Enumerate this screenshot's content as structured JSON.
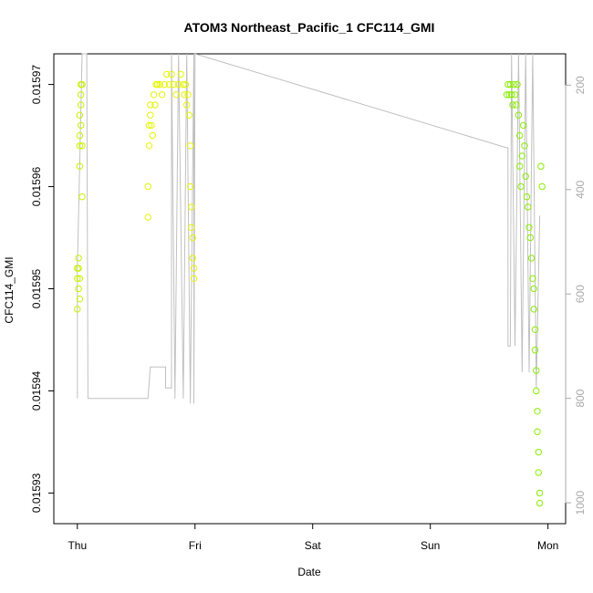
{
  "chart_data": {
    "type": "scatter",
    "title": "ATOM3 Northeast_Pacific_1 CFC114_GMI",
    "xlabel": "Date",
    "ylabel": "CFC114_GMI",
    "x_tick_labels": [
      "Thu",
      "Fri",
      "Sat",
      "Sun",
      "Mon"
    ],
    "x_ticks": [
      0,
      1,
      2,
      3,
      4
    ],
    "xlim": [
      -0.2,
      4.15
    ],
    "ylim": [
      0.015927,
      0.015973
    ],
    "y_tick_labels": [
      "0.01593",
      "0.01594",
      "0.01595",
      "0.01596",
      "0.01597"
    ],
    "y_ticks": [
      0.01593,
      0.01594,
      0.01595,
      0.01596,
      0.01597
    ],
    "right_axis": {
      "tick_labels": [
        "200",
        "400",
        "600",
        "800",
        "1000"
      ],
      "ticks": [
        200,
        400,
        600,
        800,
        1000
      ],
      "lim": [
        1040,
        140
      ],
      "color": "#aaaaaa"
    },
    "grid": false,
    "marker": "open-circle",
    "colors": {
      "early": "#c8f000",
      "mid": "#e6f500",
      "late": "#88ee00",
      "pressure_line": "#c0c0c0"
    },
    "series": [
      {
        "color": "#c8f000",
        "points": [
          [
            0.0,
            0.015951
          ],
          [
            0.0,
            0.015948
          ],
          [
            0.0,
            0.015952
          ],
          [
            0.01,
            0.01595
          ],
          [
            0.01,
            0.015952
          ],
          [
            0.01,
            0.015953
          ],
          [
            0.02,
            0.015951
          ],
          [
            0.02,
            0.015949
          ],
          [
            0.02,
            0.015962
          ],
          [
            0.02,
            0.015964
          ],
          [
            0.02,
            0.015965
          ],
          [
            0.02,
            0.015967
          ],
          [
            0.03,
            0.015966
          ],
          [
            0.03,
            0.015968
          ],
          [
            0.03,
            0.015969
          ],
          [
            0.03,
            0.01597
          ],
          [
            0.04,
            0.015964
          ],
          [
            0.04,
            0.015959
          ],
          [
            0.04,
            0.01597
          ]
        ]
      },
      {
        "color": "#e6f500",
        "points": [
          [
            0.6,
            0.015957
          ],
          [
            0.6,
            0.01596
          ],
          [
            0.61,
            0.015964
          ],
          [
            0.61,
            0.015966
          ],
          [
            0.62,
            0.015967
          ],
          [
            0.62,
            0.015968
          ],
          [
            0.63,
            0.015966
          ],
          [
            0.64,
            0.015965
          ],
          [
            0.65,
            0.015969
          ],
          [
            0.66,
            0.015968
          ],
          [
            0.67,
            0.01597
          ],
          [
            0.68,
            0.01597
          ],
          [
            0.7,
            0.01597
          ],
          [
            0.72,
            0.015969
          ],
          [
            0.74,
            0.01597
          ],
          [
            0.76,
            0.015971
          ],
          [
            0.78,
            0.01597
          ],
          [
            0.8,
            0.015971
          ],
          [
            0.82,
            0.01597
          ],
          [
            0.84,
            0.015969
          ],
          [
            0.86,
            0.01597
          ],
          [
            0.88,
            0.015971
          ],
          [
            0.9,
            0.01597
          ],
          [
            0.91,
            0.015969
          ],
          [
            0.92,
            0.01597
          ],
          [
            0.93,
            0.015968
          ],
          [
            0.94,
            0.015969
          ],
          [
            0.95,
            0.015967
          ],
          [
            0.96,
            0.015964
          ],
          [
            0.96,
            0.01596
          ],
          [
            0.97,
            0.015958
          ],
          [
            0.97,
            0.015956
          ],
          [
            0.98,
            0.015955
          ],
          [
            0.98,
            0.015953
          ],
          [
            0.99,
            0.015952
          ],
          [
            0.99,
            0.015951
          ]
        ]
      },
      {
        "color": "#88ee00",
        "points": [
          [
            3.65,
            0.015969
          ],
          [
            3.66,
            0.01597
          ],
          [
            3.67,
            0.015969
          ],
          [
            3.68,
            0.01597
          ],
          [
            3.69,
            0.015969
          ],
          [
            3.7,
            0.015968
          ],
          [
            3.71,
            0.01597
          ],
          [
            3.72,
            0.015969
          ],
          [
            3.73,
            0.015968
          ],
          [
            3.74,
            0.01597
          ],
          [
            3.75,
            0.015967
          ],
          [
            3.76,
            0.015965
          ],
          [
            3.76,
            0.015962
          ],
          [
            3.77,
            0.01596
          ],
          [
            3.78,
            0.015963
          ],
          [
            3.79,
            0.015966
          ],
          [
            3.8,
            0.015964
          ],
          [
            3.81,
            0.015961
          ],
          [
            3.82,
            0.015959
          ],
          [
            3.83,
            0.015958
          ],
          [
            3.84,
            0.015956
          ],
          [
            3.85,
            0.015955
          ],
          [
            3.86,
            0.015953
          ],
          [
            3.87,
            0.015951
          ],
          [
            3.88,
            0.01595
          ],
          [
            3.88,
            0.015948
          ],
          [
            3.89,
            0.015946
          ],
          [
            3.89,
            0.015944
          ],
          [
            3.9,
            0.015942
          ],
          [
            3.9,
            0.01594
          ],
          [
            3.91,
            0.015938
          ],
          [
            3.91,
            0.015936
          ],
          [
            3.92,
            0.015934
          ],
          [
            3.92,
            0.015932
          ],
          [
            3.93,
            0.01593
          ],
          [
            3.93,
            0.015929
          ],
          [
            3.94,
            0.015962
          ],
          [
            3.95,
            0.01596
          ]
        ]
      }
    ],
    "pressure_line": [
      [
        0.0,
        800
      ],
      [
        0.0,
        550
      ],
      [
        0.02,
        350
      ],
      [
        0.04,
        130
      ],
      [
        0.04,
        130
      ],
      [
        0.08,
        130
      ],
      [
        0.09,
        800
      ],
      [
        0.45,
        800
      ],
      [
        0.6,
        800
      ],
      [
        0.62,
        740
      ],
      [
        0.62,
        740
      ],
      [
        0.75,
        740
      ],
      [
        0.75,
        780
      ],
      [
        0.8,
        780
      ],
      [
        0.8,
        130
      ],
      [
        0.83,
        800
      ],
      [
        0.86,
        130
      ],
      [
        0.9,
        800
      ],
      [
        0.93,
        130
      ],
      [
        0.96,
        810
      ],
      [
        0.99,
        130
      ],
      [
        0.99,
        810
      ],
      [
        1.0,
        130
      ],
      [
        1.0,
        140
      ],
      [
        3.65,
        320
      ],
      [
        3.66,
        320
      ],
      [
        3.66,
        700
      ],
      [
        3.68,
        700
      ],
      [
        3.69,
        130
      ],
      [
        3.72,
        700
      ],
      [
        3.75,
        130
      ],
      [
        3.78,
        750
      ],
      [
        3.81,
        130
      ],
      [
        3.84,
        750
      ],
      [
        3.87,
        130
      ],
      [
        3.9,
        780
      ],
      [
        3.93,
        450
      ]
    ]
  }
}
